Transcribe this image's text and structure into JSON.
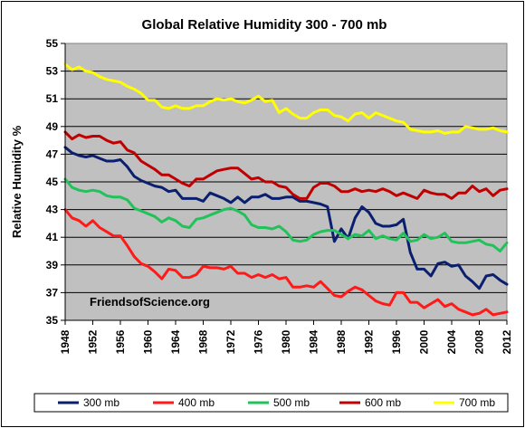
{
  "chart_data": {
    "type": "line",
    "title": "Global Relative Humidity 300 - 700 mb",
    "xlabel": "",
    "ylabel": "Relative Humidity %",
    "xlim": [
      1948,
      2012
    ],
    "ylim": [
      35,
      55
    ],
    "x_ticks": [
      "1948",
      "1952",
      "1956",
      "1960",
      "1964",
      "1968",
      "1972",
      "1976",
      "1980",
      "1984",
      "1988",
      "1992",
      "1996",
      "2000",
      "2004",
      "2008",
      "2012"
    ],
    "y_ticks": [
      "35",
      "37",
      "39",
      "41",
      "43",
      "45",
      "47",
      "49",
      "51",
      "53",
      "55"
    ],
    "grid": "horizontal",
    "legend_position": "bottom",
    "plot_background": "#C0C0C0",
    "annotation": "FriendsofScience.org",
    "x": [
      1948,
      1949,
      1950,
      1951,
      1952,
      1953,
      1954,
      1955,
      1956,
      1957,
      1958,
      1959,
      1960,
      1961,
      1962,
      1963,
      1964,
      1965,
      1966,
      1967,
      1968,
      1969,
      1970,
      1971,
      1972,
      1973,
      1974,
      1975,
      1976,
      1977,
      1978,
      1979,
      1980,
      1981,
      1982,
      1983,
      1984,
      1985,
      1986,
      1987,
      1988,
      1989,
      1990,
      1991,
      1992,
      1993,
      1994,
      1995,
      1996,
      1997,
      1998,
      1999,
      2000,
      2001,
      2002,
      2003,
      2004,
      2005,
      2006,
      2007,
      2008,
      2009,
      2010,
      2011,
      2012
    ],
    "series": [
      {
        "name": "300 mb",
        "color": "#0A1F6E",
        "values": [
          47.5,
          47.1,
          46.9,
          46.8,
          46.9,
          46.7,
          46.5,
          46.5,
          46.6,
          46.1,
          45.4,
          45.1,
          44.9,
          44.7,
          44.6,
          44.3,
          44.4,
          43.8,
          43.8,
          43.8,
          43.6,
          44.2,
          44.0,
          43.8,
          43.5,
          43.9,
          43.5,
          43.9,
          43.9,
          44.1,
          43.8,
          43.8,
          43.9,
          43.9,
          43.6,
          43.6,
          43.5,
          43.4,
          43.2,
          40.7,
          41.6,
          40.9,
          42.4,
          43.2,
          42.8,
          42.0,
          41.8,
          41.8,
          41.9,
          42.3,
          39.9,
          38.7,
          38.7,
          38.2,
          39.1,
          39.2,
          38.9,
          39.0,
          38.2,
          37.8,
          37.3,
          38.2,
          38.3,
          37.9,
          37.6
        ]
      },
      {
        "name": "400 mb",
        "color": "#FF1A1A",
        "values": [
          43.0,
          42.4,
          42.2,
          41.8,
          42.2,
          41.7,
          41.4,
          41.1,
          41.1,
          40.4,
          39.6,
          39.1,
          38.9,
          38.5,
          38.0,
          38.7,
          38.6,
          38.1,
          38.1,
          38.3,
          38.9,
          38.8,
          38.8,
          38.7,
          38.9,
          38.4,
          38.4,
          38.1,
          38.3,
          38.1,
          38.3,
          38.0,
          38.1,
          37.4,
          37.4,
          37.5,
          37.4,
          37.8,
          37.3,
          36.8,
          36.7,
          37.1,
          37.4,
          37.2,
          36.8,
          36.4,
          36.2,
          36.1,
          37.0,
          37.0,
          36.3,
          36.3,
          35.9,
          36.2,
          36.5,
          36.0,
          36.2,
          35.8,
          35.6,
          35.4,
          35.5,
          35.8,
          35.4,
          35.5,
          35.6
        ]
      },
      {
        "name": "500 mb",
        "color": "#22C25A",
        "values": [
          45.2,
          44.6,
          44.4,
          44.3,
          44.4,
          44.3,
          44.0,
          43.9,
          43.9,
          43.7,
          43.1,
          42.9,
          42.7,
          42.5,
          42.1,
          42.4,
          42.2,
          41.8,
          41.7,
          42.3,
          42.4,
          42.6,
          42.8,
          43.0,
          43.1,
          42.9,
          42.6,
          41.9,
          41.7,
          41.7,
          41.6,
          41.8,
          41.4,
          40.8,
          40.7,
          40.8,
          41.2,
          41.4,
          41.5,
          41.5,
          41.2,
          40.9,
          41.2,
          41.1,
          41.5,
          40.9,
          41.1,
          40.9,
          40.8,
          41.3,
          40.7,
          40.8,
          41.2,
          40.9,
          41.0,
          41.3,
          40.7,
          40.6,
          40.6,
          40.7,
          40.8,
          40.5,
          40.4,
          40.0,
          40.6
        ]
      },
      {
        "name": "600 mb",
        "color": "#C00000",
        "values": [
          48.6,
          48.1,
          48.4,
          48.2,
          48.3,
          48.3,
          48.0,
          47.8,
          47.9,
          47.3,
          47.1,
          46.5,
          46.2,
          45.9,
          45.5,
          45.5,
          45.2,
          44.9,
          44.7,
          45.2,
          45.2,
          45.5,
          45.8,
          45.9,
          46.0,
          46.0,
          45.6,
          45.2,
          45.3,
          45.0,
          45.0,
          44.7,
          44.6,
          44.1,
          43.8,
          43.8,
          44.6,
          44.9,
          44.9,
          44.7,
          44.3,
          44.3,
          44.5,
          44.3,
          44.4,
          44.3,
          44.5,
          44.3,
          44.0,
          44.2,
          44.0,
          43.8,
          44.4,
          44.2,
          44.1,
          44.1,
          43.8,
          44.2,
          44.2,
          44.7,
          44.3,
          44.5,
          44.0,
          44.4,
          44.5
        ]
      },
      {
        "name": "700 mb",
        "color": "#FFFF00",
        "values": [
          53.5,
          53.1,
          53.3,
          53.0,
          52.9,
          52.6,
          52.4,
          52.3,
          52.2,
          51.9,
          51.7,
          51.4,
          50.9,
          50.9,
          50.4,
          50.3,
          50.5,
          50.3,
          50.3,
          50.5,
          50.5,
          50.8,
          51.0,
          50.9,
          51.0,
          50.8,
          50.7,
          50.9,
          51.2,
          50.8,
          50.9,
          50.0,
          50.3,
          49.9,
          49.6,
          49.6,
          50.0,
          50.2,
          50.2,
          49.8,
          49.7,
          49.4,
          49.9,
          50.0,
          49.6,
          50.0,
          49.8,
          49.6,
          49.4,
          49.3,
          48.8,
          48.7,
          48.6,
          48.6,
          48.7,
          48.5,
          48.6,
          48.6,
          49.0,
          48.9,
          48.8,
          48.8,
          48.9,
          48.7,
          48.6
        ]
      }
    ]
  }
}
